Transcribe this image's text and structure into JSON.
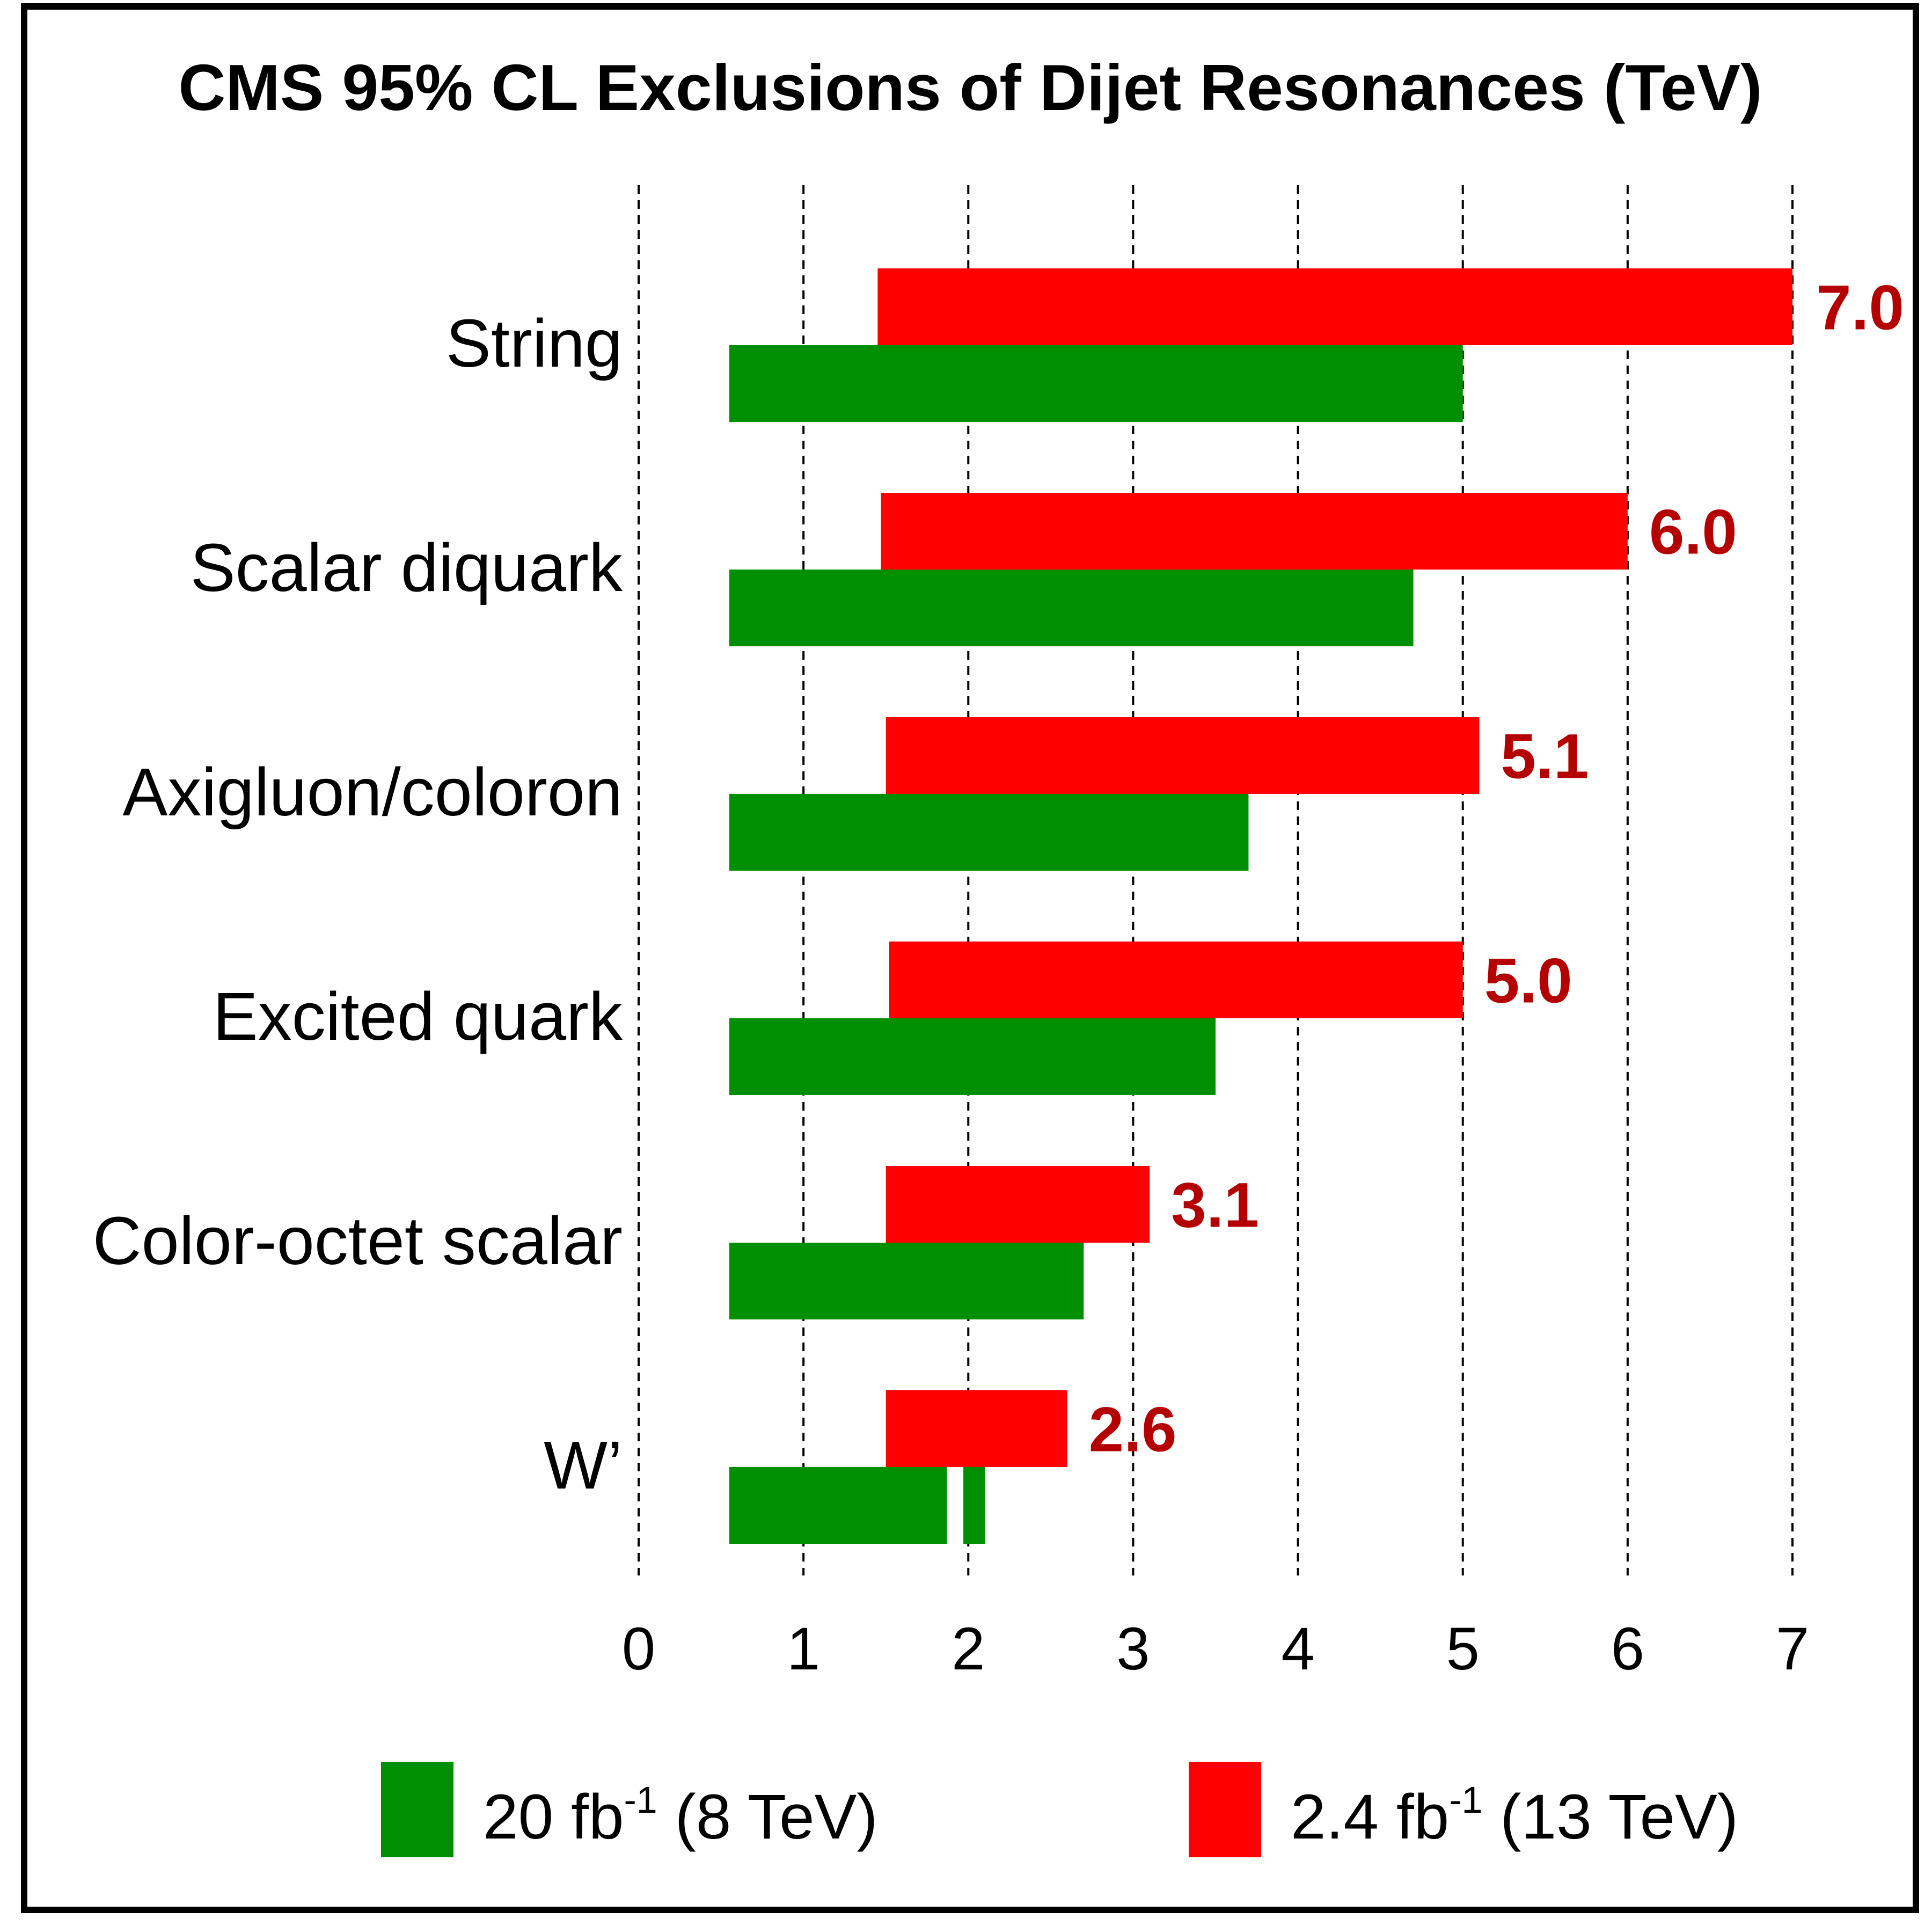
{
  "chart_data": {
    "type": "bar",
    "orientation": "horizontal",
    "title": "CMS 95% CL Exclusions of Dijet Resonances (TeV)",
    "categories": [
      "String",
      "Scalar diquark",
      "Axigluon/coloron",
      "Excited quark",
      "Color-octet scalar",
      "W’"
    ],
    "xlim": [
      0,
      7
    ],
    "xticks": [
      "0",
      "1",
      "2",
      "3",
      "4",
      "5",
      "6",
      "7"
    ],
    "grid": "vertical dashed",
    "series": [
      {
        "name": "20 fb-1 (8 TeV)",
        "legend_main": "20 fb",
        "legend_sup": "-1",
        "legend_tail": " (8 TeV)",
        "color": "#008f00",
        "ranges": [
          [
            0.55,
            5.0
          ],
          [
            0.55,
            4.7
          ],
          [
            0.55,
            3.7
          ],
          [
            0.55,
            3.5
          ],
          [
            0.55,
            2.7
          ],
          [
            0.55,
            2.1
          ]
        ],
        "gap": [
          null,
          null,
          null,
          null,
          null,
          [
            1.87,
            1.97
          ]
        ]
      },
      {
        "name": "2.4 fb-1 (13 TeV)",
        "legend_main": "2.4 fb",
        "legend_sup": "-1",
        "legend_tail": " (13 TeV)",
        "color": "#ff0000",
        "ranges": [
          [
            1.45,
            7.0
          ],
          [
            1.47,
            6.0
          ],
          [
            1.5,
            5.1
          ],
          [
            1.52,
            5.0
          ],
          [
            1.5,
            3.1
          ],
          [
            1.5,
            2.6
          ]
        ],
        "labels": [
          "7.0",
          "6.0",
          "5.1",
          "5.0",
          "3.1",
          "2.6"
        ],
        "label_color": "#b40000"
      }
    ]
  }
}
